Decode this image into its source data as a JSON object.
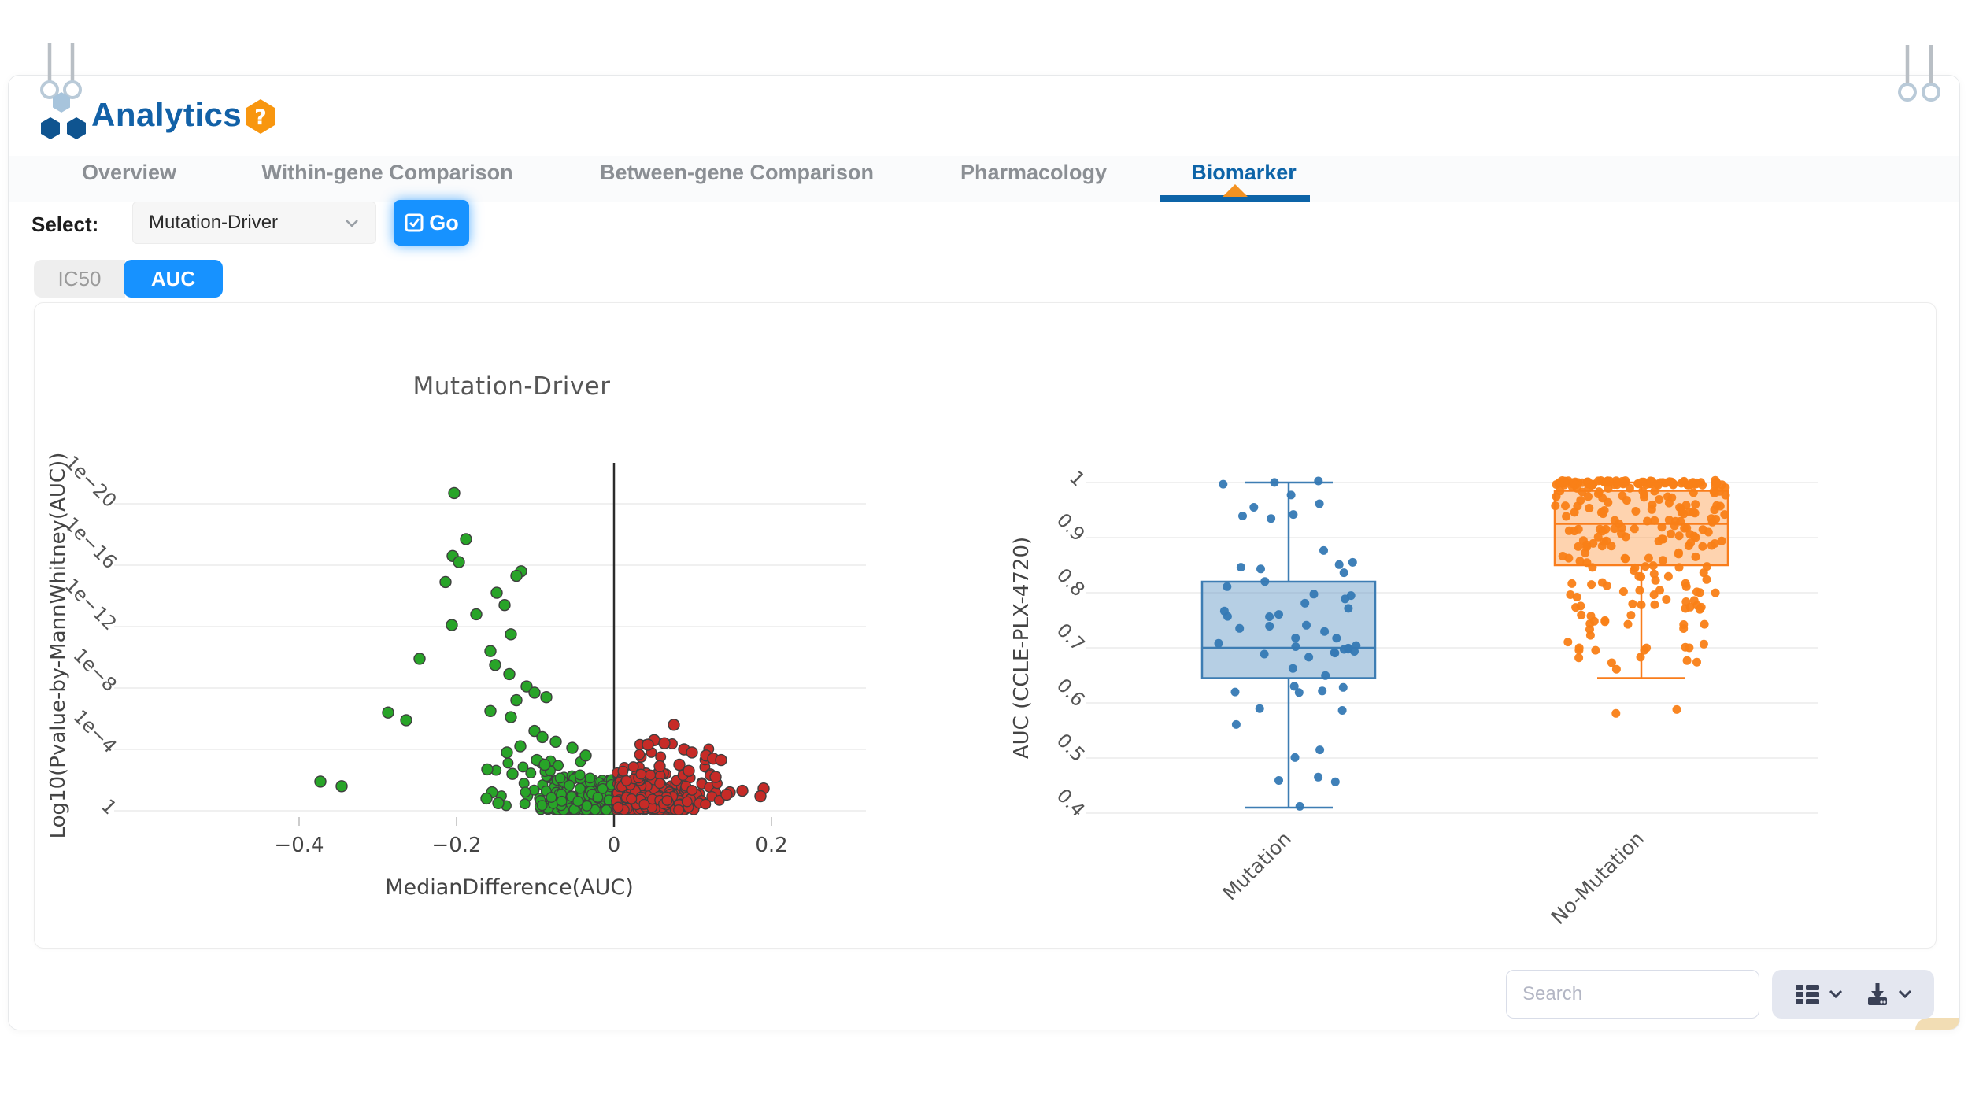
{
  "header": {
    "app_title": "Analytics",
    "help_glyph": "?",
    "brand_blue": "#1261a7",
    "help_orange": "#f8960f"
  },
  "tabs": [
    {
      "label": "Overview",
      "active": false
    },
    {
      "label": "Within-gene Comparison",
      "active": false
    },
    {
      "label": "Between-gene Comparison",
      "active": false
    },
    {
      "label": "Pharmacology",
      "active": false
    },
    {
      "label": "Biomarker",
      "active": true
    }
  ],
  "controls": {
    "select_label": "Select:",
    "dropdown_value": "Mutation-Driver",
    "go_label": "Go",
    "metric_toggle": [
      {
        "label": "IC50",
        "active": false
      },
      {
        "label": "AUC",
        "active": true
      }
    ]
  },
  "chart_data": [
    {
      "type": "scatter",
      "variant": "volcano",
      "title": "Mutation-Driver",
      "xlabel": "MedianDifference(AUC)",
      "ylabel": "Log10(Pvalue-by-MannWhitney(AUC))",
      "x_ticks": {
        "labels": [
          "−0.4",
          "−0.2",
          "0",
          "0.2"
        ],
        "values": [
          -0.4,
          -0.2,
          0,
          0.2
        ]
      },
      "y_ticks": {
        "labels": [
          "1e−20",
          "1e−16",
          "1e−12",
          "1e−8",
          "1e−4",
          "1"
        ],
        "exponents": [
          20,
          16,
          12,
          8,
          4,
          0
        ]
      },
      "xlim": [
        -0.62,
        0.3
      ],
      "y_exponent_lim": [
        0,
        22.6
      ],
      "grid": true,
      "zero_line_x": 0,
      "colors": {
        "negative": "#28a428",
        "positive": "#c62b27",
        "edge": "#3f3f3f",
        "zero_line": "#2b2b2b",
        "grid": "#ebebeb"
      },
      "notable_points": {
        "green": [
          [
            -0.203,
            20.7
          ],
          [
            -0.188,
            17.7
          ],
          [
            -0.205,
            16.6
          ],
          [
            -0.197,
            16.2
          ],
          [
            -0.118,
            15.6
          ],
          [
            -0.124,
            15.3
          ],
          [
            -0.214,
            14.9
          ],
          [
            -0.149,
            14.2
          ],
          [
            -0.139,
            13.4
          ],
          [
            -0.175,
            12.8
          ],
          [
            -0.206,
            12.1
          ],
          [
            -0.131,
            11.5
          ],
          [
            -0.157,
            10.4
          ],
          [
            -0.247,
            9.9
          ],
          [
            -0.151,
            9.5
          ],
          [
            -0.133,
            8.9
          ],
          [
            -0.111,
            8.1
          ],
          [
            -0.101,
            7.7
          ],
          [
            -0.086,
            7.4
          ],
          [
            -0.124,
            7.2
          ],
          [
            -0.157,
            6.5
          ],
          [
            -0.287,
            6.4
          ],
          [
            -0.131,
            6.1
          ],
          [
            -0.264,
            5.9
          ],
          [
            -0.101,
            5.2
          ],
          [
            -0.091,
            4.8
          ],
          [
            -0.074,
            4.5
          ],
          [
            -0.119,
            4.2
          ],
          [
            -0.053,
            4.1
          ],
          [
            -0.136,
            3.8
          ],
          [
            -0.036,
            3.6
          ],
          [
            -0.098,
            3.3
          ],
          [
            -0.088,
            3.0
          ],
          [
            -0.161,
            2.7
          ],
          [
            -0.129,
            2.4
          ],
          [
            -0.373,
            1.9
          ],
          [
            -0.346,
            1.6
          ],
          [
            -0.155,
            1.2
          ],
          [
            -0.162,
            0.8
          ],
          [
            -0.147,
            0.5
          ]
        ],
        "red": [
          [
            0.076,
            5.6
          ],
          [
            0.051,
            4.6
          ],
          [
            0.064,
            4.4
          ],
          [
            0.043,
            4.3
          ],
          [
            0.089,
            4.0
          ],
          [
            0.099,
            3.8
          ],
          [
            0.117,
            3.6
          ],
          [
            0.126,
            3.4
          ],
          [
            0.136,
            3.3
          ],
          [
            0.083,
            3.0
          ],
          [
            0.058,
            2.9
          ],
          [
            0.095,
            2.6
          ],
          [
            0.129,
            2.2
          ],
          [
            0.147,
            1.2
          ],
          [
            0.19,
            1.45
          ],
          [
            0.163,
            1.3
          ],
          [
            0.186,
            0.95
          ],
          [
            0.143,
            1.05
          ]
        ]
      },
      "clusters": [
        {
          "color": "green",
          "n": 200,
          "x_edge": -0.003,
          "x_span": -0.092,
          "x_bias": 1.4,
          "exp_min": 0.05,
          "exp_span": 2.25,
          "exp_bias": 2.2,
          "seed": 11
        },
        {
          "color": "green",
          "n": 30,
          "x_edge": -0.03,
          "x_span": -0.13,
          "x_bias": 1.0,
          "exp_min": 0.3,
          "exp_span": 3.3,
          "exp_bias": 1.5,
          "seed": 21
        },
        {
          "color": "red",
          "n": 240,
          "x_edge": 0.003,
          "x_span": 0.102,
          "x_bias": 1.5,
          "exp_min": 0.05,
          "exp_span": 2.55,
          "exp_bias": 2.2,
          "seed": 31
        },
        {
          "color": "red",
          "n": 60,
          "x_edge": 0.01,
          "x_span": 0.125,
          "x_bias": 1.3,
          "exp_min": 0.4,
          "exp_span": 4.2,
          "exp_bias": 1.6,
          "seed": 41
        }
      ]
    },
    {
      "type": "box",
      "ylabel": "AUC (CCLE-PLX-4720)",
      "y_ticks": {
        "labels": [
          "1",
          "0.9",
          "0.8",
          "0.7",
          "0.6",
          "0.5",
          "0.4"
        ],
        "values": [
          1,
          0.9,
          0.8,
          0.7,
          0.6,
          0.5,
          0.4
        ]
      },
      "ylim": [
        0.38,
        1.02
      ],
      "grid": true,
      "categories": [
        "Mutation",
        "No-Mutation"
      ],
      "series": [
        {
          "name": "Mutation",
          "line_color": "#3d7db3",
          "point_color": "#3579b4",
          "fill_color": "rgba(93,148,196,0.45)",
          "q1": 0.645,
          "median": 0.7,
          "q3": 0.82,
          "whisker_low": 0.41,
          "whisker_high": 1.0,
          "n_points": 59,
          "seed": 7,
          "point_bands": [
            [
              0.997,
              1.003,
              3,
              95
            ],
            [
              0.92,
              0.995,
              6,
              85
            ],
            [
              0.83,
              0.915,
              6,
              85
            ],
            [
              0.72,
              0.83,
              15,
              85
            ],
            [
              0.655,
              0.72,
              14,
              90
            ],
            [
              0.56,
              0.655,
              9,
              70
            ],
            [
              0.44,
              0.56,
              5,
              60
            ],
            [
              0.408,
              0.413,
              1,
              30
            ]
          ]
        },
        {
          "name": "No-Mutation",
          "line_color": "#f97d1c",
          "point_color": "#f97f17",
          "fill_color": "rgba(253,139,46,0.38)",
          "q1": 0.85,
          "median": 0.925,
          "q3": 0.985,
          "whisker_low": 0.645,
          "whisker_high": 1.0,
          "outliers": [
            0.575,
            0.585
          ],
          "n_points": 280,
          "seed": 17,
          "point_bands": [
            [
              0.995,
              1.004,
              90,
              112
            ],
            [
              0.9,
              0.993,
              88,
              110
            ],
            [
              0.85,
              0.9,
              30,
              110
            ],
            [
              0.78,
              0.85,
              32,
              100
            ],
            [
              0.7,
              0.78,
              26,
              95
            ],
            [
              0.65,
              0.7,
              12,
              80
            ],
            [
              0.573,
              0.588,
              2,
              55
            ]
          ]
        }
      ]
    }
  ],
  "footer": {
    "search_placeholder": "Search",
    "icons": [
      "table-view-icon",
      "chevron-down-icon",
      "download-icon",
      "chevron-down-icon"
    ]
  }
}
